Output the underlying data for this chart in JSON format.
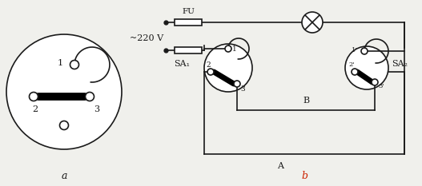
{
  "bg_color": "#f0f0ec",
  "line_color": "#1a1a1a",
  "label_a": "a",
  "label_b": "b",
  "label_b_color": "#cc2200",
  "voltage_label": "~220 V",
  "fu_label": "FU",
  "sa1_label": "SA₁",
  "sa2_label": "SA₂",
  "wire_A_label": "A",
  "wire_B_label": "B"
}
